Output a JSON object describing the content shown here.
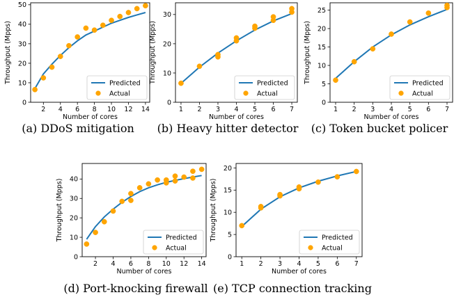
{
  "chart_data": [
    {
      "type": "line",
      "caption": "(a) DDoS mitigation",
      "xlabel": "Number of cores",
      "ylabel": "Throughput (Mpps)",
      "xlim": [
        0.5,
        14.5
      ],
      "ylim": [
        0,
        51
      ],
      "xticks": [
        2,
        4,
        6,
        8,
        10,
        12,
        14
      ],
      "yticks": [
        0,
        10,
        20,
        30,
        40,
        50
      ],
      "legend": "lower-right",
      "series": [
        {
          "name": "Predicted",
          "kind": "line",
          "color": "#1f77b4",
          "x": [
            1,
            2,
            3,
            4,
            5,
            6,
            7,
            8,
            9,
            10,
            11,
            12,
            13,
            14
          ],
          "y": [
            7,
            14.5,
            19.5,
            24,
            28,
            31.5,
            34.5,
            36.5,
            38.5,
            40.5,
            42,
            43.5,
            44.8,
            46
          ]
        },
        {
          "name": "Actual",
          "kind": "scatter",
          "color": "#ffa500",
          "x": [
            1,
            2,
            3,
            4,
            5,
            6,
            7,
            8,
            9,
            10,
            11,
            12,
            13,
            14
          ],
          "y": [
            6.5,
            12.5,
            18,
            23.5,
            29,
            33.5,
            38,
            37,
            39.5,
            42,
            44,
            46,
            48,
            49.5
          ]
        }
      ]
    },
    {
      "type": "line",
      "caption": "(b) Heavy hitter detector",
      "xlabel": "Number of cores",
      "ylabel": "Throughput (Mpps)",
      "xlim": [
        0.7,
        7.3
      ],
      "ylim": [
        0,
        34
      ],
      "xticks": [
        1,
        2,
        3,
        4,
        5,
        6,
        7
      ],
      "yticks": [
        0,
        10,
        20,
        30
      ],
      "legend": "lower-right",
      "series": [
        {
          "name": "Predicted",
          "kind": "line",
          "color": "#1f77b4",
          "x": [
            1,
            2,
            3,
            4,
            5,
            6,
            7
          ],
          "y": [
            6.5,
            12,
            16.8,
            21,
            24.7,
            27.8,
            30.3
          ]
        },
        {
          "name": "Actual",
          "kind": "scatter",
          "color": "#ffa500",
          "x": [
            1,
            2,
            3,
            3,
            4,
            4,
            5,
            5,
            6,
            6,
            7,
            7
          ],
          "y": [
            6.5,
            12.3,
            15.5,
            16.3,
            21,
            22,
            25.3,
            26,
            28,
            29.2,
            30.8,
            32
          ]
        }
      ]
    },
    {
      "type": "line",
      "caption": "(c) Token bucket policer",
      "xlabel": "Number of cores",
      "ylabel": "Throughput (Mpps)",
      "xlim": [
        0.7,
        7.3
      ],
      "ylim": [
        0,
        27
      ],
      "xticks": [
        1,
        2,
        3,
        4,
        5,
        6,
        7
      ],
      "yticks": [
        0,
        5,
        10,
        15,
        20,
        25
      ],
      "legend": "lower-right",
      "series": [
        {
          "name": "Predicted",
          "kind": "line",
          "color": "#1f77b4",
          "x": [
            1,
            2,
            3,
            4,
            5,
            6,
            7
          ],
          "y": [
            6.5,
            11,
            15,
            18.3,
            21,
            23.2,
            25.2
          ]
        },
        {
          "name": "Actual",
          "kind": "scatter",
          "color": "#ffa500",
          "x": [
            1,
            2,
            3,
            4,
            5,
            6,
            7,
            7
          ],
          "y": [
            6,
            11,
            14.5,
            18.5,
            21.8,
            24.2,
            25.7,
            26.3
          ]
        }
      ]
    },
    {
      "type": "line",
      "caption": "(d) Port-knocking firewall",
      "xlabel": "Number of cores",
      "ylabel": "Throughput (Mpps)",
      "xlim": [
        0.5,
        14.5
      ],
      "ylim": [
        0,
        48
      ],
      "xticks": [
        2,
        4,
        6,
        8,
        10,
        12,
        14
      ],
      "yticks": [
        0,
        10,
        20,
        30,
        40
      ],
      "legend": "lower-right",
      "series": [
        {
          "name": "Predicted",
          "kind": "line",
          "color": "#1f77b4",
          "x": [
            1,
            2,
            3,
            4,
            5,
            6,
            7,
            8,
            9,
            10,
            11,
            12,
            13,
            14
          ],
          "y": [
            9,
            15.5,
            20.5,
            24.5,
            28,
            31,
            33.5,
            35.5,
            37,
            38.3,
            39.3,
            40.2,
            41,
            41.8
          ]
        },
        {
          "name": "Actual",
          "kind": "scatter",
          "color": "#ffa500",
          "x": [
            1,
            2,
            3,
            4,
            5,
            6,
            6,
            7,
            8,
            9,
            10,
            10,
            11,
            11,
            12,
            13,
            13,
            14
          ],
          "y": [
            6.5,
            12.5,
            18,
            23.5,
            28.5,
            29,
            32.5,
            35.5,
            37.5,
            39.5,
            38,
            39.5,
            39,
            41.5,
            41,
            40.5,
            44,
            45
          ]
        }
      ]
    },
    {
      "type": "line",
      "caption": "(e) TCP connection tracking",
      "xlabel": "Number of cores",
      "ylabel": "Throughput (Mpps)",
      "xlim": [
        0.7,
        7.3
      ],
      "ylim": [
        0,
        21
      ],
      "xticks": [
        1,
        2,
        3,
        4,
        5,
        6,
        7
      ],
      "yticks": [
        0,
        5,
        10,
        15,
        20
      ],
      "legend": "lower-right",
      "series": [
        {
          "name": "Predicted",
          "kind": "line",
          "color": "#1f77b4",
          "x": [
            1,
            2,
            3,
            4,
            5,
            6,
            7
          ],
          "y": [
            6.8,
            10.7,
            13.5,
            15.5,
            17,
            18.2,
            19.2
          ]
        },
        {
          "name": "Actual",
          "kind": "scatter",
          "color": "#ffa500",
          "x": [
            1,
            2,
            2,
            3,
            3,
            4,
            4,
            5,
            6,
            7
          ],
          "y": [
            7,
            11,
            11.3,
            13.7,
            14,
            15.3,
            15.7,
            16.8,
            18,
            19.2
          ]
        }
      ]
    }
  ]
}
